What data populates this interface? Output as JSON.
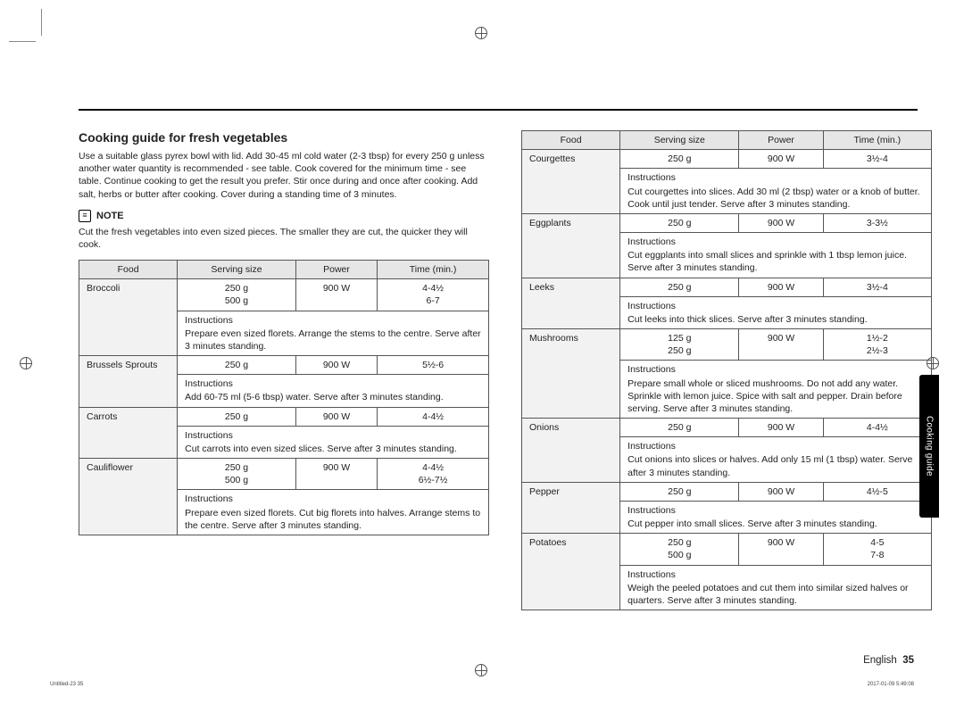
{
  "title": "Cooking guide for fresh vegetables",
  "intro": "Use a suitable glass pyrex bowl with lid. Add 30-45 ml cold water (2-3 tbsp) for every 250 g unless another water quantity is recommended - see table. Cook covered for the minimum time - see table. Continue cooking to get the result you prefer. Stir once during and once after cooking. Add salt, herbs or butter after cooking. Cover during a standing time of 3 minutes.",
  "noteLabel": "NOTE",
  "noteText": "Cut the fresh vegetables into even sized pieces. The smaller they are cut, the quicker they will cook.",
  "headers": {
    "food": "Food",
    "serving": "Serving size",
    "power": "Power",
    "time": "Time (min.)"
  },
  "instrWord": "Instructions",
  "left": [
    {
      "food": "Broccoli",
      "serving": "250 g\n500 g",
      "power": "900 W",
      "time": "4-4½\n6-7",
      "instr": "Prepare even sized florets. Arrange the stems to the centre. Serve after 3 minutes standing."
    },
    {
      "food": "Brussels Sprouts",
      "serving": "250 g",
      "power": "900 W",
      "time": "5½-6",
      "instr": "Add 60-75 ml (5-6 tbsp) water. Serve after 3 minutes standing."
    },
    {
      "food": "Carrots",
      "serving": "250 g",
      "power": "900 W",
      "time": "4-4½",
      "instr": "Cut carrots into even sized slices. Serve after 3 minutes standing."
    },
    {
      "food": "Cauliflower",
      "serving": "250 g\n500 g",
      "power": "900 W",
      "time": "4-4½\n6½-7½",
      "instr": "Prepare even sized florets. Cut big florets into halves. Arrange stems to the centre. Serve after 3 minutes standing."
    }
  ],
  "right": [
    {
      "food": "Courgettes",
      "serving": "250 g",
      "power": "900 W",
      "time": "3½-4",
      "instr": "Cut courgettes into slices. Add 30 ml (2 tbsp) water or a knob of butter. Cook until just tender. Serve after 3 minutes standing."
    },
    {
      "food": "Eggplants",
      "serving": "250 g",
      "power": "900 W",
      "time": "3-3½",
      "instr": "Cut eggplants into small slices and sprinkle with 1 tbsp lemon juice. Serve after 3 minutes standing."
    },
    {
      "food": "Leeks",
      "serving": "250 g",
      "power": "900 W",
      "time": "3½-4",
      "instr": "Cut leeks into thick slices. Serve after 3 minutes standing."
    },
    {
      "food": "Mushrooms",
      "serving": "125 g\n250 g",
      "power": "900 W",
      "time": "1½-2\n2½-3",
      "instr": "Prepare small whole or sliced mushrooms. Do not add any water. Sprinkle with lemon juice. Spice with salt and pepper. Drain before serving. Serve after 3 minutes standing."
    },
    {
      "food": "Onions",
      "serving": "250 g",
      "power": "900 W",
      "time": "4-4½",
      "instr": "Cut onions into slices or halves. Add only 15 ml (1 tbsp) water. Serve after 3 minutes standing."
    },
    {
      "food": "Pepper",
      "serving": "250 g",
      "power": "900 W",
      "time": "4½-5",
      "instr": "Cut pepper into small slices. Serve after 3 minutes standing."
    },
    {
      "food": "Potatoes",
      "serving": "250 g\n500 g",
      "power": "900 W",
      "time": "4-5\n7-8",
      "instr": "Weigh the peeled potatoes and cut them into similar sized halves or quarters. Serve after 3 minutes standing."
    }
  ],
  "sideTab": "Cooking guide",
  "footer": {
    "lang": "English",
    "page": "35"
  },
  "tiny": {
    "left": "Untitled-23   35",
    "right": "2017-01-09   5:49:08"
  }
}
